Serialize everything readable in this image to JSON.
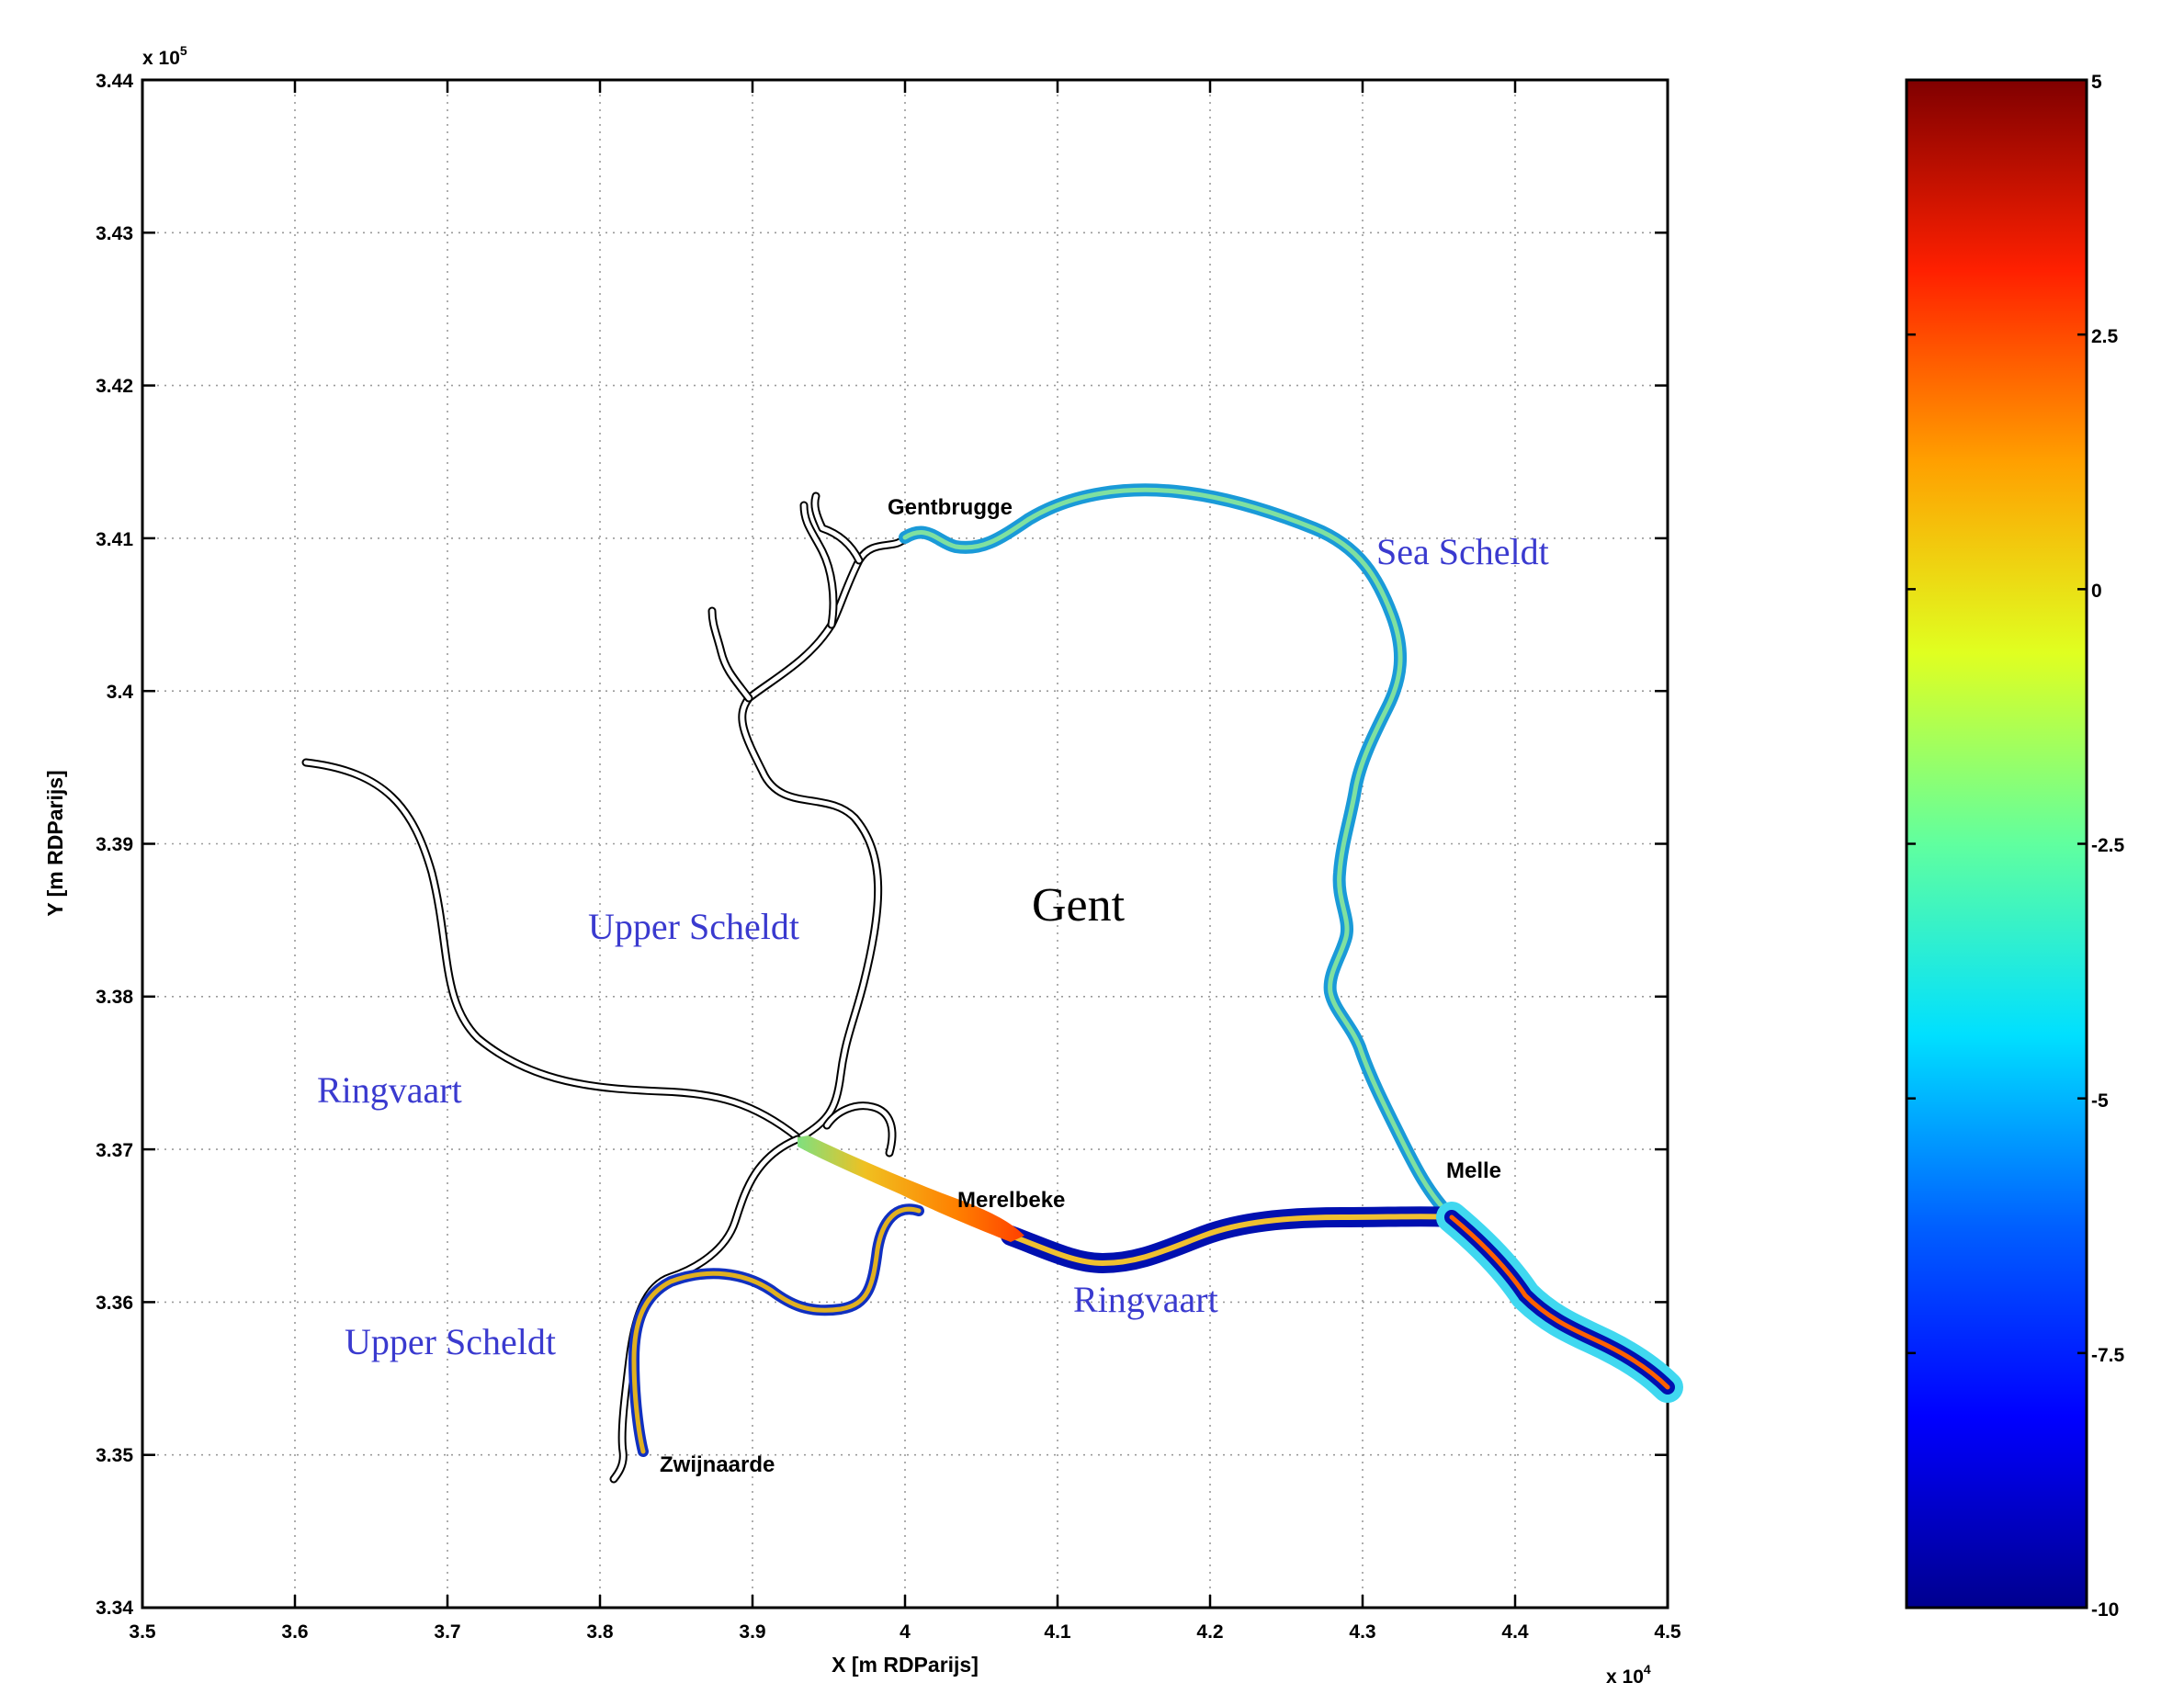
{
  "axes": {
    "x_label": "X [m RDParijs]",
    "y_label": "Y [m RDParijs]",
    "x_multiplier_base": "x 10",
    "x_multiplier_exp": "4",
    "y_multiplier_base": "x 10",
    "y_multiplier_exp": "5",
    "x_ticks": [
      "3.5",
      "3.6",
      "3.7",
      "3.8",
      "3.9",
      "4",
      "4.1",
      "4.2",
      "4.3",
      "4.4",
      "4.5"
    ],
    "y_ticks": [
      "3.44",
      "3.43",
      "3.42",
      "3.41",
      "3.4",
      "3.39",
      "3.38",
      "3.37",
      "3.36",
      "3.35",
      "3.34"
    ],
    "x_range": [
      35000,
      45000
    ],
    "y_range": [
      334000,
      344000
    ],
    "grid": "dotted"
  },
  "colorbar": {
    "ticks": [
      "5",
      "2.5",
      "0",
      "-2.5",
      "-5",
      "-7.5",
      "-10"
    ],
    "range": [
      -10,
      5
    ],
    "colormap": "jet",
    "colors": [
      "#00008f",
      "#0000ff",
      "#0080ff",
      "#00ffff",
      "#80ff80",
      "#ffff00",
      "#ff8000",
      "#ff0000",
      "#800000"
    ]
  },
  "labels": {
    "gentbrugge": "Gentbrugge",
    "merelbeke": "Merelbeke",
    "melle": "Melle",
    "zwijnaarde": "Zwijnaarde",
    "sea_scheldt": "Sea Scheldt",
    "upper_scheldt_1": "Upper Scheldt",
    "upper_scheldt_2": "Upper Scheldt",
    "ringvaart_1": "Ringvaart",
    "ringvaart_2": "Ringvaart",
    "gent": "Gent"
  },
  "colors": {
    "region_text": "#3a3acf",
    "river_outline": "#000000"
  }
}
